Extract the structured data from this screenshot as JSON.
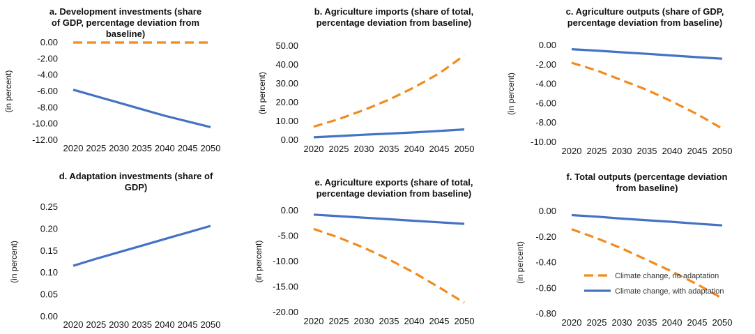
{
  "legend": {
    "series_names": [
      "Climate change, no adaptation",
      "Climate change, with adaptation"
    ]
  },
  "colors": {
    "no_adaptation": "#F28A1E",
    "with_adaptation": "#4472C4",
    "text": "#111111"
  },
  "chart_data": [
    {
      "id": "a",
      "type": "line",
      "title_lines": [
        "a. Development investments (share",
        "of GDP, percentage deviation from",
        "baseline)"
      ],
      "ylabel": "(in percent)",
      "x": [
        2020,
        2025,
        2030,
        2035,
        2040,
        2045,
        2050
      ],
      "ylim": [
        -12,
        0
      ],
      "yticks": [
        0,
        -2,
        -4,
        -6,
        -8,
        -10,
        -12
      ],
      "ytick_labels": [
        "0.00",
        "-2.00",
        "-4.00",
        "-6.00",
        "-8.00",
        "-10.00",
        "-12.00"
      ],
      "series": [
        {
          "name": "Climate change, no adaptation",
          "values": [
            0,
            0,
            0,
            0,
            0,
            0,
            0
          ]
        },
        {
          "name": "Climate change, with adaptation",
          "values": [
            -5.8,
            -6.6,
            -7.4,
            -8.2,
            -9.0,
            -9.7,
            -10.4
          ]
        }
      ]
    },
    {
      "id": "b",
      "type": "line",
      "title_lines": [
        "b. Agriculture imports (share of total,",
        "percentage deviation from baseline)"
      ],
      "ylabel": "(in percent)",
      "x": [
        2020,
        2025,
        2030,
        2035,
        2040,
        2045,
        2050
      ],
      "ylim": [
        0,
        50
      ],
      "yticks": [
        0,
        10,
        20,
        30,
        40,
        50
      ],
      "ytick_labels": [
        "0.00",
        "10.00",
        "20.00",
        "30.00",
        "40.00",
        "50.00"
      ],
      "series": [
        {
          "name": "Climate change, no adaptation",
          "values": [
            7.2,
            11.2,
            16.0,
            21.5,
            28.0,
            35.5,
            45.0
          ]
        },
        {
          "name": "Climate change, with adaptation",
          "values": [
            1.5,
            2.2,
            2.9,
            3.5,
            4.1,
            4.9,
            5.7
          ]
        }
      ]
    },
    {
      "id": "c",
      "type": "line",
      "title_lines": [
        "c. Agriculture outputs (share of GDP,",
        "percentage deviation from baseline)"
      ],
      "ylabel": "(in percent)",
      "x": [
        2020,
        2025,
        2030,
        2035,
        2040,
        2045,
        2050
      ],
      "ylim": [
        -10,
        0
      ],
      "yticks": [
        0,
        -2,
        -4,
        -6,
        -8,
        -10
      ],
      "ytick_labels": [
        "0.00",
        "-2.00",
        "-4.00",
        "-6.00",
        "-8.00",
        "-10.00"
      ],
      "series": [
        {
          "name": "Climate change, no adaptation",
          "values": [
            -1.8,
            -2.6,
            -3.6,
            -4.6,
            -5.8,
            -7.1,
            -8.6
          ]
        },
        {
          "name": "Climate change, with adaptation",
          "values": [
            -0.4,
            -0.55,
            -0.72,
            -0.88,
            -1.05,
            -1.22,
            -1.38
          ]
        }
      ]
    },
    {
      "id": "d",
      "type": "line",
      "title_lines": [
        "d. Adaptation investments (share of",
        "GDP)"
      ],
      "ylabel": "(in percent)",
      "x": [
        2020,
        2025,
        2030,
        2035,
        2040,
        2045,
        2050
      ],
      "ylim": [
        0,
        0.25
      ],
      "yticks": [
        0,
        0.05,
        0.1,
        0.15,
        0.2,
        0.25
      ],
      "ytick_labels": [
        "0.00",
        "0.05",
        "0.10",
        "0.15",
        "0.20",
        "0.25"
      ],
      "series": [
        {
          "name": "Climate change, with adaptation",
          "values": [
            0.116,
            0.132,
            0.147,
            0.162,
            0.177,
            0.192,
            0.207
          ]
        }
      ]
    },
    {
      "id": "e",
      "type": "line",
      "title_lines": [
        "e. Agriculture exports (share of total,",
        "percentage deviation from baseline)"
      ],
      "ylabel": "(in  percent)",
      "x": [
        2020,
        2025,
        2030,
        2035,
        2040,
        2045,
        2050
      ],
      "ylim": [
        -20,
        0
      ],
      "yticks": [
        0,
        -5,
        -10,
        -15,
        -20
      ],
      "ytick_labels": [
        "0.00",
        "-5.00",
        "-10.00",
        "-15.00",
        "-20.00"
      ],
      "series": [
        {
          "name": "Climate change, no adaptation",
          "values": [
            -3.6,
            -5.3,
            -7.3,
            -9.6,
            -12.2,
            -15.1,
            -18.1
          ]
        },
        {
          "name": "Climate change, with adaptation",
          "values": [
            -0.8,
            -1.1,
            -1.4,
            -1.7,
            -2.0,
            -2.3,
            -2.6
          ]
        }
      ]
    },
    {
      "id": "f",
      "type": "line",
      "title_lines": [
        "f. Total outputs (percentage deviation",
        "from baseline)"
      ],
      "ylabel": "(in  percent)",
      "x": [
        2020,
        2025,
        2030,
        2035,
        2040,
        2045,
        2050
      ],
      "ylim": [
        -0.8,
        0
      ],
      "yticks": [
        0,
        -0.2,
        -0.4,
        -0.6,
        -0.8
      ],
      "ytick_labels": [
        "0.00",
        "-0.20",
        "-0.40",
        "-0.60",
        "-0.80"
      ],
      "series": [
        {
          "name": "Climate change, no adaptation",
          "values": [
            -0.14,
            -0.21,
            -0.29,
            -0.38,
            -0.47,
            -0.57,
            -0.68
          ]
        },
        {
          "name": "Climate change, with adaptation",
          "values": [
            -0.03,
            -0.042,
            -0.057,
            -0.07,
            -0.082,
            -0.097,
            -0.11
          ]
        }
      ]
    }
  ]
}
